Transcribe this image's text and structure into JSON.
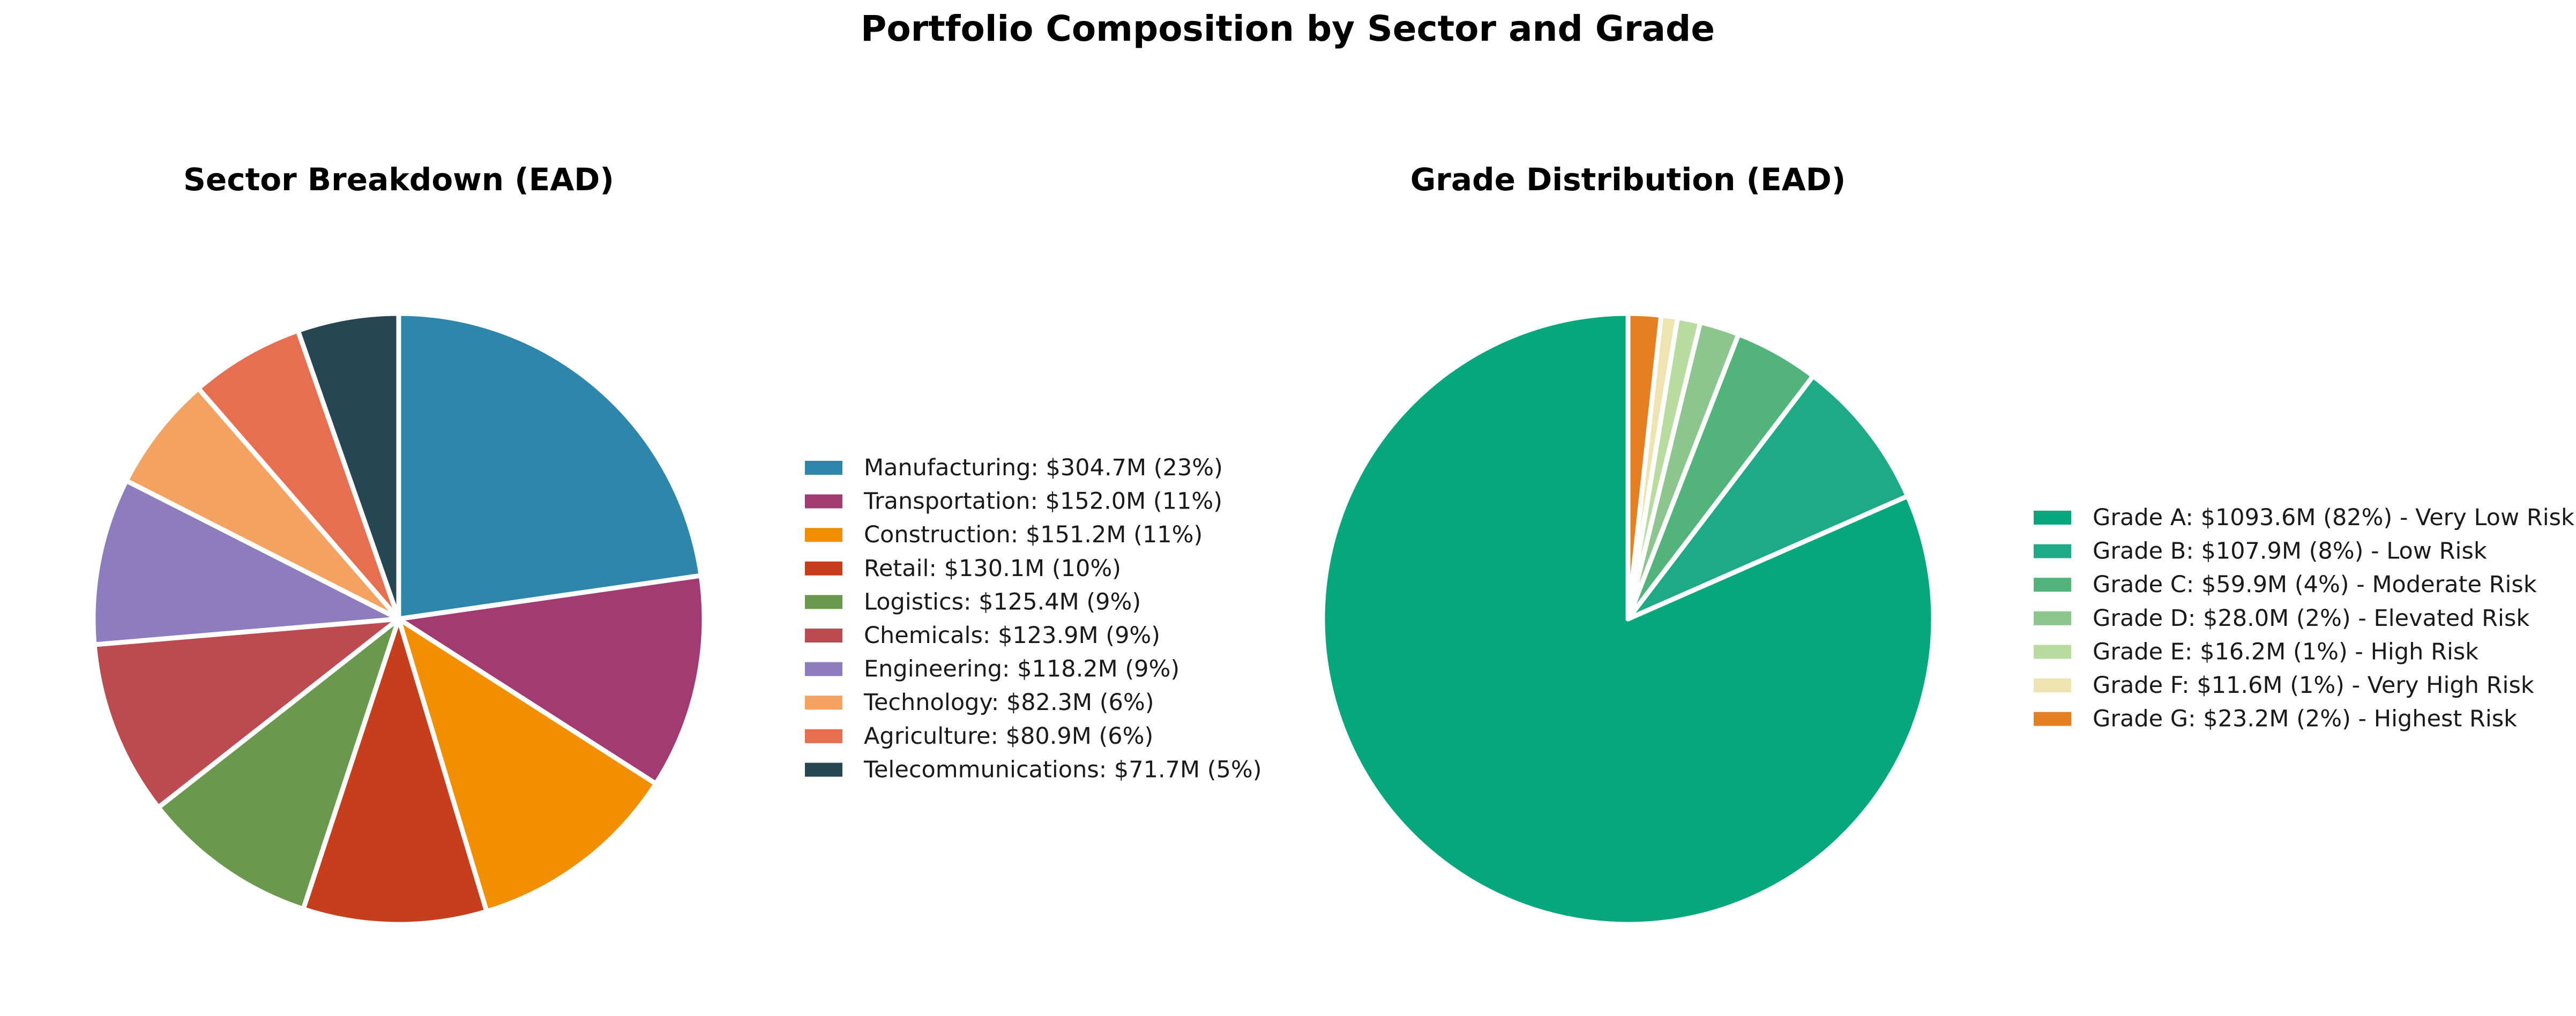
{
  "figure": {
    "title": "Portfolio Composition by Sector and Grade"
  },
  "chart_data": [
    {
      "type": "pie",
      "title": "Sector Breakdown (EAD)",
      "start_angle_deg": 90,
      "direction": "clockwise",
      "legend_position": "right",
      "slices": [
        {
          "label": "Manufacturing",
          "value": 304.7,
          "percent": 23,
          "legend": "Manufacturing: $304.7M (23%)",
          "color": "#2E86AB"
        },
        {
          "label": "Transportation",
          "value": 152.0,
          "percent": 11,
          "legend": "Transportation: $152.0M (11%)",
          "color": "#A23B72"
        },
        {
          "label": "Construction",
          "value": 151.2,
          "percent": 11,
          "legend": "Construction: $151.2M (11%)",
          "color": "#F18F01"
        },
        {
          "label": "Retail",
          "value": 130.1,
          "percent": 10,
          "legend": "Retail: $130.1M (10%)",
          "color": "#C73E1D"
        },
        {
          "label": "Logistics",
          "value": 125.4,
          "percent": 9,
          "legend": "Logistics: $125.4M (9%)",
          "color": "#6A994E"
        },
        {
          "label": "Chemicals",
          "value": 123.9,
          "percent": 9,
          "legend": "Chemicals: $123.9M (9%)",
          "color": "#BC4B51"
        },
        {
          "label": "Engineering",
          "value": 118.2,
          "percent": 9,
          "legend": "Engineering: $118.2M (9%)",
          "color": "#8E7DBE"
        },
        {
          "label": "Technology",
          "value": 82.3,
          "percent": 6,
          "legend": "Technology: $82.3M (6%)",
          "color": "#F4A261"
        },
        {
          "label": "Agriculture",
          "value": 80.9,
          "percent": 6,
          "legend": "Agriculture: $80.9M (6%)",
          "color": "#E76F51"
        },
        {
          "label": "Telecommunications",
          "value": 71.7,
          "percent": 5,
          "legend": "Telecommunications: $71.7M (5%)",
          "color": "#264653"
        }
      ]
    },
    {
      "type": "pie",
      "title": "Grade Distribution (EAD)",
      "start_angle_deg": 90,
      "direction": "counterclockwise",
      "legend_position": "right",
      "slices": [
        {
          "label": "Grade A",
          "value": 1093.6,
          "percent": 82,
          "legend": "Grade A: $1093.6M (82%) - Very Low Risk",
          "color": "#06A77D"
        },
        {
          "label": "Grade B",
          "value": 107.9,
          "percent": 8,
          "legend": "Grade B: $107.9M (8%) - Low Risk",
          "color": "#1FAA87"
        },
        {
          "label": "Grade C",
          "value": 59.9,
          "percent": 4,
          "legend": "Grade C: $59.9M (4%) - Moderate Risk",
          "color": "#52B47A"
        },
        {
          "label": "Grade D",
          "value": 28.0,
          "percent": 2,
          "legend": "Grade D: $28.0M (2%) - Elevated Risk",
          "color": "#8CC58E"
        },
        {
          "label": "Grade E",
          "value": 16.2,
          "percent": 1,
          "legend": "Grade E: $16.2M (1%) - High Risk",
          "color": "#B8DBA0"
        },
        {
          "label": "Grade F",
          "value": 11.6,
          "percent": 1,
          "legend": "Grade F: $11.6M (1%) - Very High Risk",
          "color": "#EFE4B0"
        },
        {
          "label": "Grade G",
          "value": 23.2,
          "percent": 2,
          "legend": "Grade G: $23.2M (2%) - Highest Risk",
          "color": "#E67E22"
        }
      ]
    }
  ]
}
